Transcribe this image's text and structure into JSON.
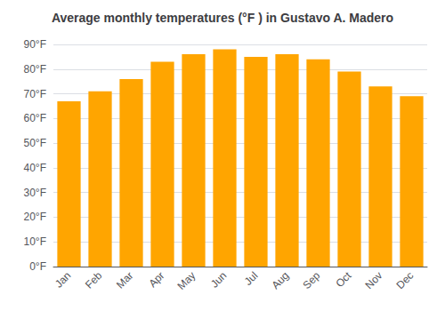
{
  "chart_data": {
    "type": "bar",
    "title": "Average monthly temperatures (°F ) in Gustavo A. Madero",
    "categories": [
      "Jan",
      "Feb",
      "Mar",
      "Apr",
      "May",
      "Jun",
      "Jul",
      "Aug",
      "Sep",
      "Oct",
      "Nov",
      "Dec"
    ],
    "values": [
      67,
      71,
      76,
      83,
      86,
      88,
      85,
      86,
      84,
      79,
      73,
      69
    ],
    "color": "#FFA500",
    "ylim": [
      0,
      90
    ],
    "yticks": [
      {
        "value": 0,
        "label": "0°F"
      },
      {
        "value": 10,
        "label": "10°F"
      },
      {
        "value": 20,
        "label": "20°F"
      },
      {
        "value": 30,
        "label": "30°F"
      },
      {
        "value": 40,
        "label": "40°F"
      },
      {
        "value": 50,
        "label": "50°F"
      },
      {
        "value": 60,
        "label": "60°F"
      },
      {
        "value": 70,
        "label": "70°F"
      },
      {
        "value": 80,
        "label": "80°F"
      },
      {
        "value": 90,
        "label": "90°F"
      }
    ],
    "grid": true
  }
}
